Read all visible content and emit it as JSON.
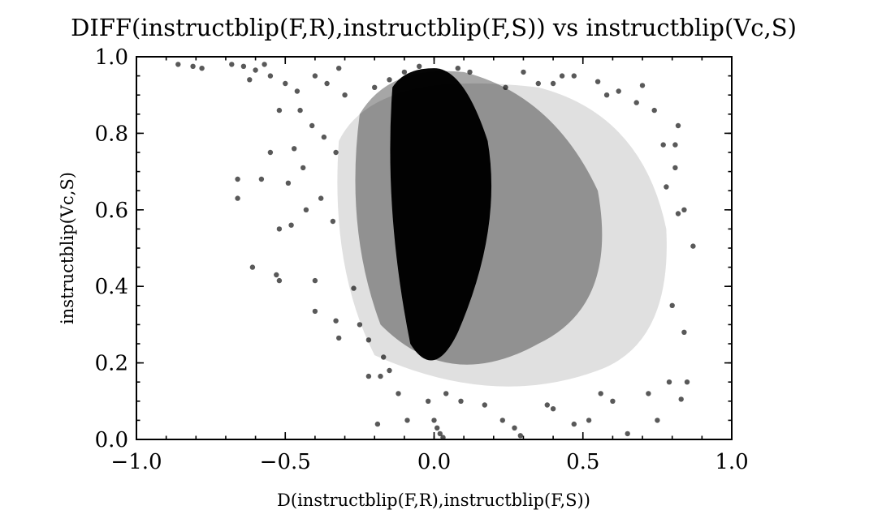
{
  "chart_data": {
    "type": "scatter",
    "title": "DIFF(instructblip(F,R),instructblip(F,S)) vs instructblip(Vc,S)",
    "xlabel": "D(instructblip(F,R),instructblip(F,S))",
    "ylabel": "instructblip(Vc,S)",
    "xlim": [
      -1.0,
      1.0
    ],
    "ylim": [
      0.0,
      1.0
    ],
    "x_ticks": [
      -1.0,
      -0.5,
      0.0,
      0.5,
      1.0
    ],
    "x_tick_labels": [
      "−1.0",
      "−0.5",
      "0.0",
      "0.5",
      "1.0"
    ],
    "y_ticks": [
      0.0,
      0.2,
      0.4,
      0.6,
      0.8,
      1.0
    ],
    "y_tick_labels": [
      "0.0",
      "0.2",
      "0.4",
      "0.6",
      "0.8",
      "1.0"
    ],
    "grid": false,
    "legend": "none",
    "marker_color": "#000000",
    "marker_alpha": 0.65,
    "points": [
      [
        -0.86,
        0.98
      ],
      [
        -0.81,
        0.975
      ],
      [
        -0.78,
        0.97
      ],
      [
        -0.68,
        0.98
      ],
      [
        -0.64,
        0.975
      ],
      [
        -0.6,
        0.965
      ],
      [
        -0.57,
        0.98
      ],
      [
        -0.62,
        0.94
      ],
      [
        -0.55,
        0.95
      ],
      [
        -0.5,
        0.93
      ],
      [
        -0.46,
        0.91
      ],
      [
        -0.4,
        0.95
      ],
      [
        -0.36,
        0.93
      ],
      [
        -0.32,
        0.97
      ],
      [
        -0.3,
        0.9
      ],
      [
        -0.45,
        0.86
      ],
      [
        -0.52,
        0.86
      ],
      [
        -0.41,
        0.82
      ],
      [
        -0.37,
        0.79
      ],
      [
        -0.33,
        0.75
      ],
      [
        -0.47,
        0.76
      ],
      [
        -0.55,
        0.75
      ],
      [
        -0.44,
        0.71
      ],
      [
        -0.49,
        0.67
      ],
      [
        -0.43,
        0.6
      ],
      [
        -0.38,
        0.63
      ],
      [
        -0.34,
        0.57
      ],
      [
        -0.48,
        0.56
      ],
      [
        -0.52,
        0.55
      ],
      [
        -0.66,
        0.68
      ],
      [
        -0.66,
        0.63
      ],
      [
        -0.58,
        0.68
      ],
      [
        -0.61,
        0.45
      ],
      [
        -0.53,
        0.43
      ],
      [
        -0.52,
        0.415
      ],
      [
        -0.4,
        0.415
      ],
      [
        -0.4,
        0.335
      ],
      [
        -0.33,
        0.31
      ],
      [
        -0.27,
        0.395
      ],
      [
        -0.32,
        0.265
      ],
      [
        -0.25,
        0.3
      ],
      [
        -0.22,
        0.26
      ],
      [
        -0.22,
        0.165
      ],
      [
        -0.18,
        0.165
      ],
      [
        -0.17,
        0.215
      ],
      [
        -0.15,
        0.18
      ],
      [
        -0.12,
        0.12
      ],
      [
        -0.19,
        0.04
      ],
      [
        -0.09,
        0.05
      ],
      [
        0.0,
        0.05
      ],
      [
        0.01,
        0.03
      ],
      [
        0.02,
        0.015
      ],
      [
        0.03,
        0.005
      ],
      [
        -0.02,
        0.1
      ],
      [
        0.04,
        0.12
      ],
      [
        0.09,
        0.1
      ],
      [
        0.17,
        0.09
      ],
      [
        0.23,
        0.05
      ],
      [
        0.27,
        0.03
      ],
      [
        0.29,
        0.01
      ],
      [
        0.38,
        0.09
      ],
      [
        0.4,
        0.08
      ],
      [
        0.47,
        0.04
      ],
      [
        0.52,
        0.05
      ],
      [
        0.56,
        0.12
      ],
      [
        0.6,
        0.1
      ],
      [
        0.65,
        0.015
      ],
      [
        0.72,
        0.12
      ],
      [
        0.75,
        0.05
      ],
      [
        0.83,
        0.105
      ],
      [
        0.85,
        0.15
      ],
      [
        0.79,
        0.15
      ],
      [
        0.84,
        0.28
      ],
      [
        0.8,
        0.35
      ],
      [
        0.87,
        0.505
      ],
      [
        0.82,
        0.59
      ],
      [
        0.84,
        0.6
      ],
      [
        0.78,
        0.66
      ],
      [
        0.81,
        0.71
      ],
      [
        0.77,
        0.77
      ],
      [
        0.81,
        0.77
      ],
      [
        0.82,
        0.82
      ],
      [
        0.74,
        0.86
      ],
      [
        0.7,
        0.925
      ],
      [
        0.68,
        0.88
      ],
      [
        0.62,
        0.91
      ],
      [
        0.58,
        0.9
      ],
      [
        0.55,
        0.935
      ],
      [
        0.47,
        0.95
      ],
      [
        0.43,
        0.95
      ],
      [
        0.4,
        0.93
      ],
      [
        0.35,
        0.93
      ],
      [
        0.3,
        0.96
      ],
      [
        0.24,
        0.92
      ],
      [
        0.12,
        0.96
      ],
      [
        0.08,
        0.97
      ],
      [
        -0.05,
        0.975
      ],
      [
        -0.1,
        0.96
      ],
      [
        -0.15,
        0.94
      ],
      [
        -0.2,
        0.92
      ]
    ]
  }
}
